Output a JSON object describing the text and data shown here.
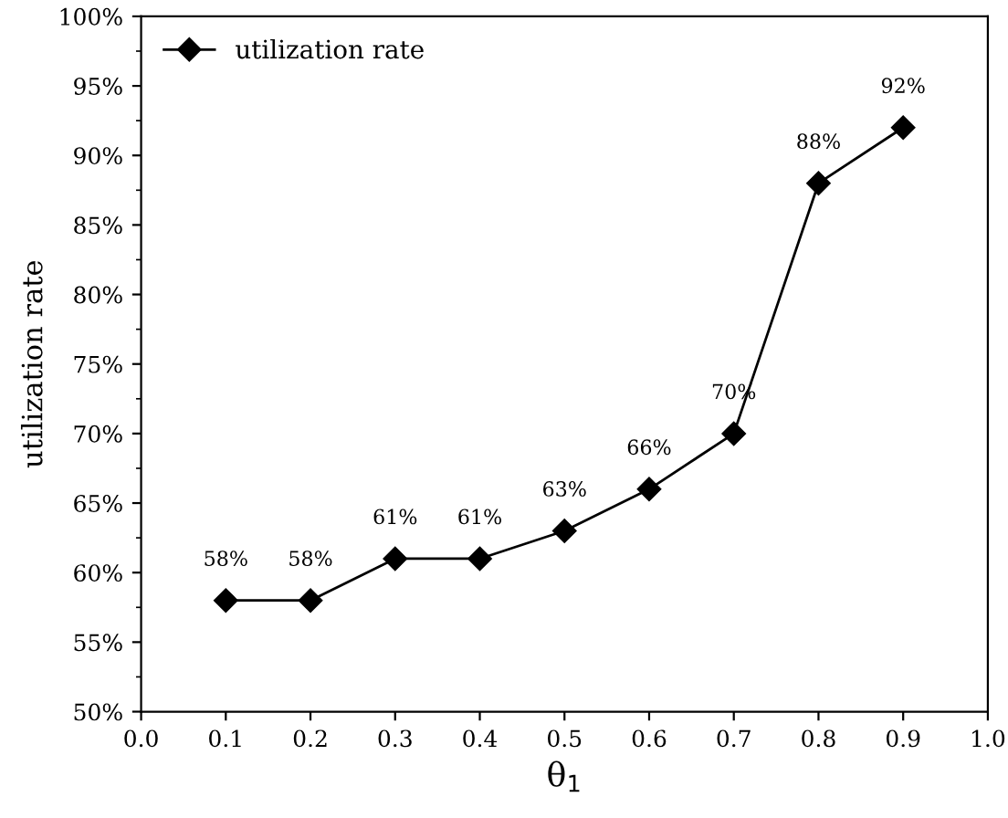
{
  "chart_data": {
    "type": "line",
    "xlabel": "θ$_{1}$",
    "ylabel": "utilization rate",
    "x": [
      0.1,
      0.2,
      0.3,
      0.4,
      0.5,
      0.6,
      0.7,
      0.8,
      0.9
    ],
    "series": [
      {
        "name": "utilization rate",
        "color": "#000000",
        "values": [
          58,
          58,
          61,
          61,
          63,
          66,
          70,
          88,
          92
        ],
        "value_labels": [
          "58%",
          "58%",
          "61%",
          "61%",
          "63%",
          "66%",
          "70%",
          "88%",
          "92%"
        ]
      }
    ],
    "xlim": [
      0,
      1
    ],
    "ylim": [
      50,
      100
    ],
    "xticks": [
      {
        "value": 0,
        "label": "0.0"
      },
      0.1,
      0.2,
      0.3,
      0.4,
      0.5,
      0.6,
      0.7,
      0.8,
      0.9,
      {
        "value": 1,
        "label": "1.0"
      }
    ],
    "yticks": [
      {
        "value": 50,
        "label": "50%"
      },
      {
        "value": 55,
        "label": "55%"
      },
      {
        "value": 60,
        "label": "60%"
      },
      {
        "value": 65,
        "label": "65%"
      },
      {
        "value": 70,
        "label": "70%"
      },
      {
        "value": 75,
        "label": "75%"
      },
      {
        "value": 80,
        "label": "80%"
      },
      {
        "value": 85,
        "label": "85%"
      },
      {
        "value": 90,
        "label": "90%"
      },
      {
        "value": 95,
        "label": "95%"
      },
      {
        "value": 100,
        "label": "100%"
      }
    ],
    "marker": "diamond",
    "line_style": "solid",
    "legend": "top left",
    "grid": false
  }
}
